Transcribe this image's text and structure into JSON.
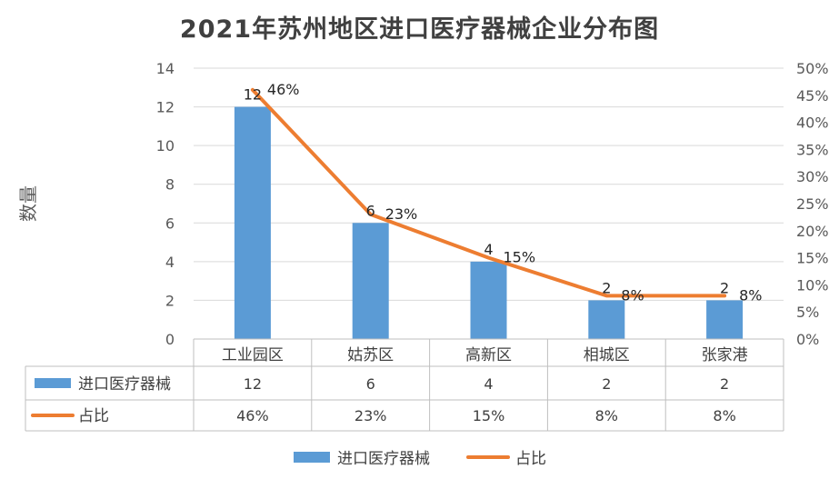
{
  "chart_data": {
    "type": "bar",
    "title": "2021年苏州地区进口医疗器械企业分布图",
    "ylabel": "数量",
    "ylim": [
      0,
      14
    ],
    "y_ticks": [
      0,
      2,
      4,
      6,
      8,
      10,
      12,
      14
    ],
    "y2lim": [
      0,
      0.5
    ],
    "y2_ticks": [
      "0%",
      "5%",
      "10%",
      "15%",
      "20%",
      "25%",
      "30%",
      "35%",
      "40%",
      "45%",
      "50%"
    ],
    "categories": [
      "工业园区",
      "姑苏区",
      "高新区",
      "相城区",
      "张家港"
    ],
    "series": [
      {
        "name": "进口医疗器械",
        "type": "bar",
        "axis": "left",
        "color": "#5B9BD5",
        "values": [
          12,
          6,
          4,
          2,
          2
        ],
        "labels": [
          "12",
          "6",
          "4",
          "2",
          "2"
        ]
      },
      {
        "name": "占比",
        "type": "line",
        "axis": "right",
        "color": "#ED7D31",
        "values": [
          0.46,
          0.23,
          0.15,
          0.08,
          0.08
        ],
        "labels": [
          "46%",
          "23%",
          "15%",
          "8%",
          "8%"
        ]
      }
    ],
    "grid": true,
    "data_table": true,
    "legend_placement": "bottom"
  }
}
